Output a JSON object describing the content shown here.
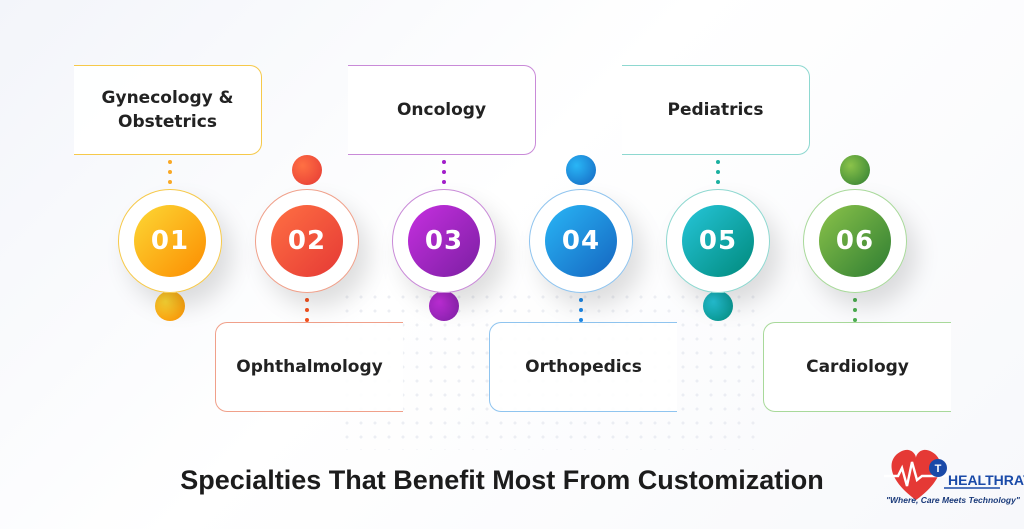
{
  "title": "Specialties That Benefit Most From Customization",
  "items": [
    {
      "number": "01",
      "label": "Gynecology & Obstetrics",
      "position": "top",
      "color": "#f9a825",
      "colors": [
        "#fdd835",
        "#fb8c00"
      ],
      "line_color": "#f6c94a"
    },
    {
      "number": "02",
      "label": "Ophthalmology",
      "position": "bottom",
      "color": "#f4511e",
      "colors": [
        "#ff7043",
        "#e53935"
      ],
      "line_color": "#f0a08a"
    },
    {
      "number": "03",
      "label": "Oncology",
      "position": "top",
      "color": "#a21ec9",
      "colors": [
        "#c62fe0",
        "#7b1fa2"
      ],
      "line_color": "#c98ad8"
    },
    {
      "number": "04",
      "label": "Orthopedics",
      "position": "bottom",
      "color": "#1e88e5",
      "colors": [
        "#29b6f6",
        "#1565c0"
      ],
      "line_color": "#8fc4ef"
    },
    {
      "number": "05",
      "label": "Pediatrics",
      "position": "top",
      "color": "#1ab0a0",
      "colors": [
        "#26c6da",
        "#00897b"
      ],
      "line_color": "#8ed8d0"
    },
    {
      "number": "06",
      "label": "Cardiology",
      "position": "bottom",
      "color": "#4caf50",
      "colors": [
        "#8bc34a",
        "#2e7d32"
      ],
      "line_color": "#a8d99a"
    }
  ],
  "logo": {
    "name": "HEALTHRAY",
    "tagline": "\"Where, Care Meets Technology\"",
    "heart_color": "#e53935",
    "accent_color": "#1a4aa8",
    "icon": "heart-pulse-logo"
  }
}
